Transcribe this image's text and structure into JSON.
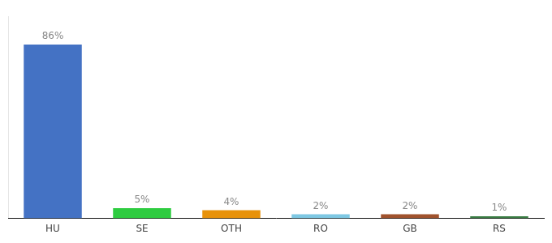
{
  "chart_data": {
    "type": "bar",
    "categories": [
      "HU",
      "SE",
      "OTH",
      "RO",
      "GB",
      "RS"
    ],
    "values": [
      86,
      5,
      4,
      2,
      2,
      1
    ],
    "value_labels": [
      "86%",
      "5%",
      "4%",
      "2%",
      "2%",
      "1%"
    ],
    "colors": [
      "#4472C4",
      "#2ECC40",
      "#E8920A",
      "#7EC8E3",
      "#A0522D",
      "#3A7D44"
    ],
    "ylim": [
      0,
      100
    ],
    "grid": false,
    "data_labels": true,
    "tick_labels": "x"
  }
}
